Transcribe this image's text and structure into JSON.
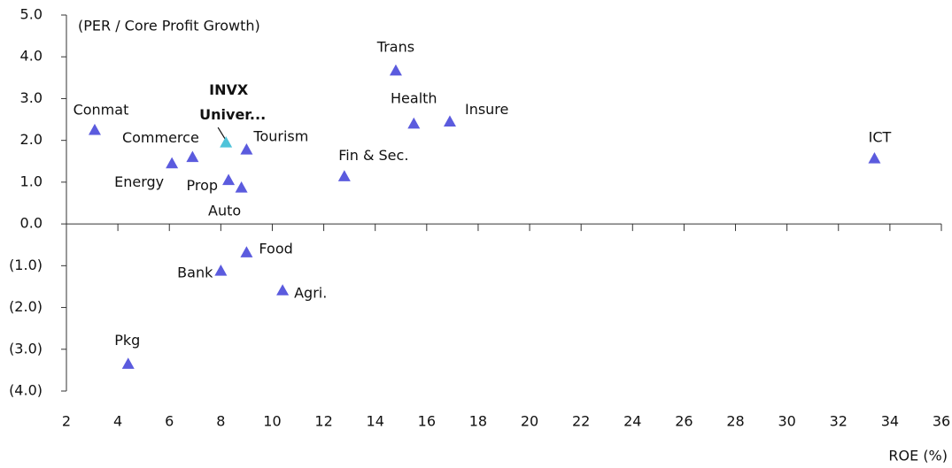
{
  "chart_data": {
    "type": "scatter",
    "y_label": "(PER / Core Profit Growth)",
    "x_label": "ROE (%)",
    "color": "#5b5bde",
    "xlim": [
      2,
      36
    ],
    "xticks": [
      2,
      4,
      6,
      8,
      10,
      12,
      14,
      16,
      18,
      20,
      22,
      24,
      26,
      28,
      30,
      32,
      34,
      36
    ],
    "ylim": [
      -4,
      5
    ],
    "yticks": [
      {
        "value": -4,
        "label": "(4.0)"
      },
      {
        "value": -3,
        "label": "(3.0)"
      },
      {
        "value": -2,
        "label": "(2.0)"
      },
      {
        "value": -1,
        "label": "(1.0)"
      },
      {
        "value": 0,
        "label": "0.0"
      },
      {
        "value": 1,
        "label": "1.0"
      },
      {
        "value": 2,
        "label": "2.0"
      },
      {
        "value": 3,
        "label": "3.0"
      },
      {
        "value": 4,
        "label": "4.0"
      },
      {
        "value": 5,
        "label": "5.0"
      }
    ],
    "points": [
      {
        "label": "Conmat",
        "x": 3.1,
        "y": 2.25
      },
      {
        "label": "Commerce",
        "x": 6.9,
        "y": 1.6
      },
      {
        "label": "Energy",
        "x": 6.1,
        "y": 1.45
      },
      {
        "label": "INVX Univer...",
        "x": 8.2,
        "y": 1.95,
        "color": "#4fc3d9",
        "bold": true
      },
      {
        "label": "Tourism",
        "x": 9.0,
        "y": 1.78
      },
      {
        "label": "Prop",
        "x": 8.3,
        "y": 1.05
      },
      {
        "label": "Auto",
        "x": 8.8,
        "y": 0.87
      },
      {
        "label": "Trans",
        "x": 14.8,
        "y": 3.67
      },
      {
        "label": "Health",
        "x": 15.5,
        "y": 2.4
      },
      {
        "label": "Insure",
        "x": 16.9,
        "y": 2.45
      },
      {
        "label": "Fin & Sec.",
        "x": 12.8,
        "y": 1.14
      },
      {
        "label": "ICT",
        "x": 33.4,
        "y": 1.57
      },
      {
        "label": "Food",
        "x": 9.0,
        "y": -0.68
      },
      {
        "label": "Bank",
        "x": 8.0,
        "y": -1.12
      },
      {
        "label": "Agri.",
        "x": 10.4,
        "y": -1.59
      },
      {
        "label": "Pkg",
        "x": 4.4,
        "y": -3.35
      }
    ]
  }
}
